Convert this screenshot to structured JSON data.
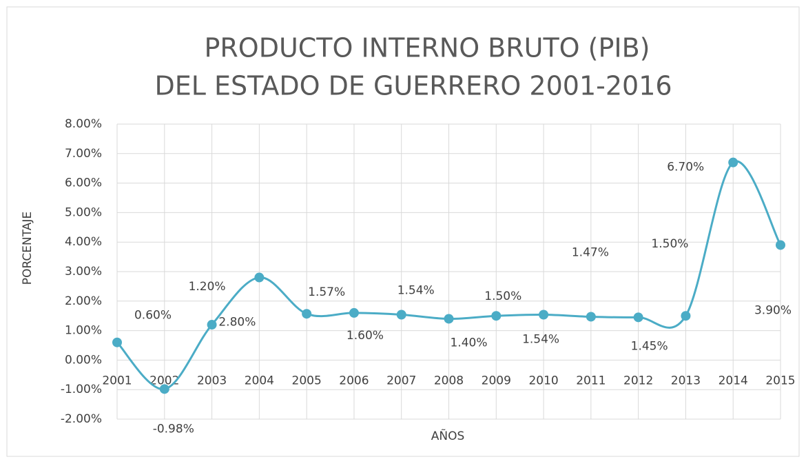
{
  "chart_data": {
    "type": "line",
    "title": [
      "PRODUCTO INTERNO BRUTO (PIB)",
      "DEL ESTADO DE GUERRERO 2001-2016"
    ],
    "x_label": "AÑOS",
    "y_label": "PORCENTAJE",
    "categories": [
      "2001",
      "2002",
      "2003",
      "2004",
      "2005",
      "2006",
      "2007",
      "2008",
      "2009",
      "2010",
      "2011",
      "2012",
      "2013",
      "2014",
      "2015"
    ],
    "series": [
      {
        "name": "PIB",
        "color": "#4bacc6",
        "values": [
          0.6,
          -0.98,
          1.2,
          2.8,
          1.57,
          1.6,
          1.54,
          1.4,
          1.5,
          1.54,
          1.47,
          1.45,
          1.5,
          6.7,
          3.9
        ],
        "value_labels": [
          "0.60%",
          "-0.98%",
          "1.20%",
          "2.80%",
          "1.57%",
          "1.60%",
          "1.54%",
          "1.40%",
          "1.50%",
          "1.54%",
          "1.47%",
          "1.45%",
          "1.50%",
          "6.70%",
          "3.90%"
        ]
      }
    ],
    "ylim": [
      -2,
      8
    ],
    "yticks": [
      {
        "value": -2,
        "label": "-2.00%"
      },
      {
        "value": -1,
        "label": "-1.00%"
      },
      {
        "value": 0,
        "label": "0.00%"
      },
      {
        "value": 1,
        "label": "1.00%"
      },
      {
        "value": 2,
        "label": "2.00%"
      },
      {
        "value": 3,
        "label": "3.00%"
      },
      {
        "value": 4,
        "label": "4.00%"
      },
      {
        "value": 5,
        "label": "5.00%"
      },
      {
        "value": 6,
        "label": "6.00%"
      },
      {
        "value": 7,
        "label": "7.00%"
      },
      {
        "value": 8,
        "label": "8.00%"
      }
    ],
    "grid": true,
    "smooth": true
  }
}
